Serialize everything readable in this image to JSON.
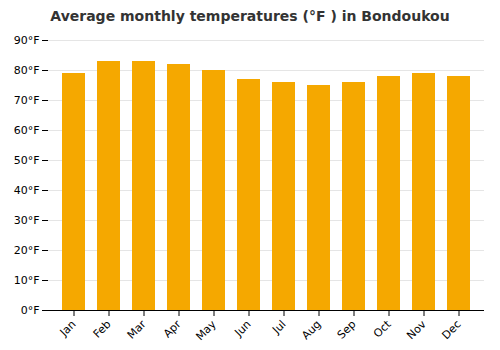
{
  "chart_data": {
    "type": "bar",
    "title": "Average monthly temperatures (°F ) in Bondoukou",
    "categories": [
      "Jan",
      "Feb",
      "Mar",
      "Apr",
      "May",
      "Jun",
      "Jul",
      "Aug",
      "Sep",
      "Oct",
      "Nov",
      "Dec"
    ],
    "values": [
      79,
      83,
      83,
      82,
      80,
      77,
      76,
      75,
      76,
      78,
      79,
      78
    ],
    "color": "#F5A800",
    "ylim": [
      0,
      90
    ],
    "yticks": [
      {
        "value": 0,
        "label": "0°F"
      },
      {
        "value": 10,
        "label": "10°F"
      },
      {
        "value": 20,
        "label": "20°F"
      },
      {
        "value": 30,
        "label": "30°F"
      },
      {
        "value": 40,
        "label": "40°F"
      },
      {
        "value": 50,
        "label": "50°F"
      },
      {
        "value": 60,
        "label": "60°F"
      },
      {
        "value": 70,
        "label": "70°F"
      },
      {
        "value": 80,
        "label": "80°F"
      },
      {
        "value": 90,
        "label": "90°F"
      }
    ],
    "grid": true
  }
}
